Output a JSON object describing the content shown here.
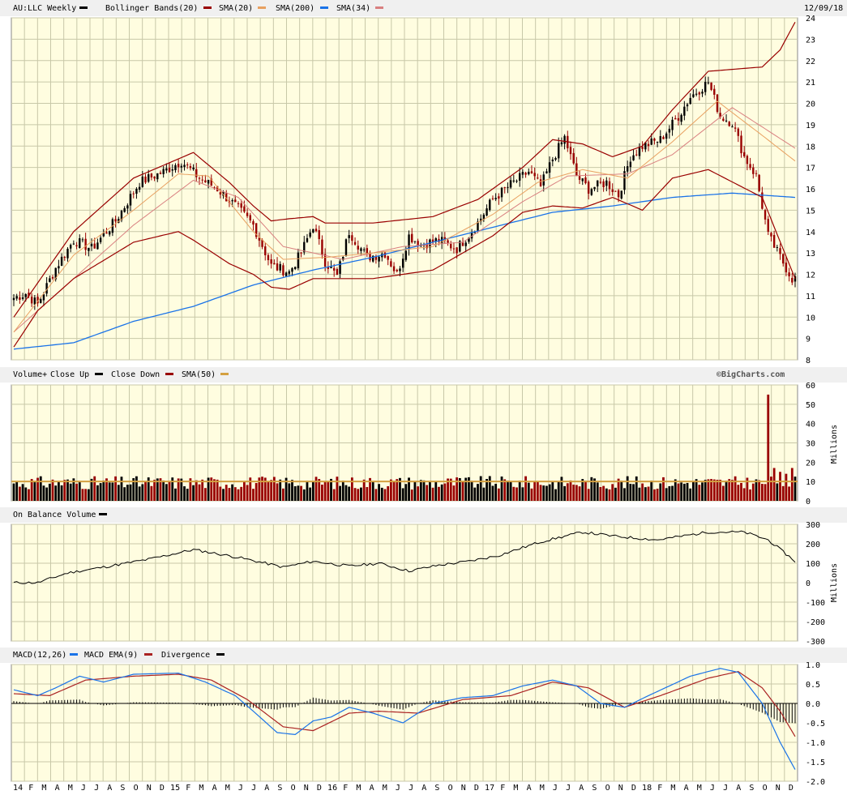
{
  "header": {
    "symbol_label": "AU:LLC Weekly",
    "bollinger_label": "Bollinger Bands(20)",
    "sma20_label": "SMA(20)",
    "sma200_label": "SMA(200)",
    "sma34_label": "SMA(34)",
    "date": "12/09/18"
  },
  "volume_header": {
    "title": "Volume+",
    "close_up": "Close Up",
    "close_down": "Close Down",
    "sma50": "SMA(50)",
    "credit": "©BigCharts.com"
  },
  "obv_header": {
    "title": "On Balance Volume"
  },
  "macd_header": {
    "title": "MACD(12,26)",
    "ema": "MACD EMA(9)",
    "divergence": "Divergence"
  },
  "colors": {
    "background": "#fffde0",
    "grid": "#c8c8a8",
    "up": "#000000",
    "down": "#990000",
    "bollinger": "#990000",
    "sma20": "#e8a060",
    "sma200": "#1a73e8",
    "sma34": "#d98080",
    "macd": "#1a73e8",
    "macd_ema": "#aa2222",
    "vol_sma": "#d4a040"
  },
  "chart_data": [
    {
      "type": "candlestick",
      "panel": "price",
      "ylim": [
        8,
        24
      ],
      "yticks": [
        8,
        9,
        10,
        11,
        12,
        13,
        14,
        15,
        16,
        17,
        18,
        19,
        20,
        21,
        22,
        23,
        24
      ],
      "x_labels": [
        "14",
        "F",
        "M",
        "A",
        "M",
        "J",
        "J",
        "A",
        "S",
        "O",
        "N",
        "D",
        "15",
        "F",
        "M",
        "A",
        "M",
        "J",
        "J",
        "A",
        "S",
        "O",
        "N",
        "D",
        "16",
        "F",
        "M",
        "A",
        "M",
        "J",
        "J",
        "A",
        "S",
        "O",
        "N",
        "D",
        "17",
        "F",
        "M",
        "A",
        "M",
        "J",
        "J",
        "A",
        "S",
        "O",
        "N",
        "D",
        "18",
        "F",
        "M",
        "A",
        "M",
        "J",
        "J",
        "A",
        "S",
        "O",
        "N",
        "D"
      ],
      "close_anchors": [
        [
          0,
          10.9
        ],
        [
          4,
          11.1
        ],
        [
          8,
          10.6
        ],
        [
          14,
          12.3
        ],
        [
          20,
          13.6
        ],
        [
          26,
          13.2
        ],
        [
          34,
          14.5
        ],
        [
          42,
          16.3
        ],
        [
          50,
          16.8
        ],
        [
          56,
          17.3
        ],
        [
          62,
          16.5
        ],
        [
          68,
          16.0
        ],
        [
          74,
          15.2
        ],
        [
          80,
          14.3
        ],
        [
          86,
          12.4
        ],
        [
          92,
          12.1
        ],
        [
          96,
          13.0
        ],
        [
          100,
          14.3
        ],
        [
          104,
          12.6
        ],
        [
          108,
          11.9
        ],
        [
          112,
          14.0
        ],
        [
          118,
          12.8
        ],
        [
          124,
          13.0
        ],
        [
          128,
          12.0
        ],
        [
          132,
          13.8
        ],
        [
          136,
          13.4
        ],
        [
          142,
          13.6
        ],
        [
          148,
          13.2
        ],
        [
          154,
          14.2
        ],
        [
          160,
          15.5
        ],
        [
          166,
          16.2
        ],
        [
          172,
          16.8
        ],
        [
          176,
          16.1
        ],
        [
          180,
          17.4
        ],
        [
          184,
          18.4
        ],
        [
          188,
          16.6
        ],
        [
          192,
          16.0
        ],
        [
          198,
          16.3
        ],
        [
          202,
          15.7
        ],
        [
          206,
          17.5
        ],
        [
          210,
          18.0
        ],
        [
          216,
          18.3
        ],
        [
          222,
          19.4
        ],
        [
          226,
          20.3
        ],
        [
          232,
          21.0
        ],
        [
          236,
          19.4
        ],
        [
          240,
          19.1
        ],
        [
          244,
          17.5
        ],
        [
          248,
          16.6
        ],
        [
          252,
          13.8
        ],
        [
          256,
          12.8
        ],
        [
          260,
          11.8
        ]
      ],
      "bb_upper_anchors": [
        [
          0,
          10.0
        ],
        [
          20,
          14.0
        ],
        [
          40,
          16.5
        ],
        [
          60,
          17.7
        ],
        [
          72,
          16.3
        ],
        [
          80,
          15.2
        ],
        [
          86,
          14.5
        ],
        [
          92,
          14.6
        ],
        [
          100,
          14.7
        ],
        [
          104,
          14.4
        ],
        [
          120,
          14.4
        ],
        [
          140,
          14.7
        ],
        [
          155,
          15.5
        ],
        [
          170,
          17.0
        ],
        [
          180,
          18.3
        ],
        [
          190,
          18.1
        ],
        [
          200,
          17.5
        ],
        [
          210,
          18.0
        ],
        [
          220,
          19.7
        ],
        [
          232,
          21.5
        ],
        [
          250,
          21.7
        ],
        [
          256,
          22.5
        ],
        [
          261,
          23.8
        ]
      ],
      "bb_lower_anchors": [
        [
          0,
          8.6
        ],
        [
          8,
          10.3
        ],
        [
          20,
          11.8
        ],
        [
          40,
          13.5
        ],
        [
          55,
          14.0
        ],
        [
          60,
          13.6
        ],
        [
          72,
          12.5
        ],
        [
          80,
          12.0
        ],
        [
          86,
          11.4
        ],
        [
          92,
          11.3
        ],
        [
          100,
          11.8
        ],
        [
          120,
          11.8
        ],
        [
          140,
          12.2
        ],
        [
          150,
          13.0
        ],
        [
          160,
          13.8
        ],
        [
          170,
          14.9
        ],
        [
          180,
          15.2
        ],
        [
          190,
          15.1
        ],
        [
          200,
          15.6
        ],
        [
          210,
          15.0
        ],
        [
          220,
          16.5
        ],
        [
          232,
          16.9
        ],
        [
          250,
          15.6
        ],
        [
          261,
          11.8
        ]
      ],
      "sma20_anchors": [
        [
          0,
          9.3
        ],
        [
          20,
          12.9
        ],
        [
          40,
          15.0
        ],
        [
          55,
          16.7
        ],
        [
          65,
          16.6
        ],
        [
          80,
          14.0
        ],
        [
          90,
          12.7
        ],
        [
          105,
          12.8
        ],
        [
          120,
          13.0
        ],
        [
          140,
          13.3
        ],
        [
          160,
          14.8
        ],
        [
          175,
          16.3
        ],
        [
          190,
          16.9
        ],
        [
          205,
          16.5
        ],
        [
          220,
          18.2
        ],
        [
          235,
          20.1
        ],
        [
          250,
          18.5
        ],
        [
          261,
          17.3
        ]
      ],
      "sma34_anchors": [
        [
          0,
          9.3
        ],
        [
          20,
          11.8
        ],
        [
          40,
          14.3
        ],
        [
          60,
          16.4
        ],
        [
          75,
          15.6
        ],
        [
          90,
          13.3
        ],
        [
          110,
          12.7
        ],
        [
          130,
          13.3
        ],
        [
          150,
          13.5
        ],
        [
          170,
          15.4
        ],
        [
          185,
          16.6
        ],
        [
          205,
          16.7
        ],
        [
          220,
          17.6
        ],
        [
          240,
          19.8
        ],
        [
          261,
          17.9
        ]
      ],
      "sma200_anchors": [
        [
          0,
          8.5
        ],
        [
          20,
          8.8
        ],
        [
          40,
          9.8
        ],
        [
          60,
          10.5
        ],
        [
          80,
          11.5
        ],
        [
          100,
          12.2
        ],
        [
          120,
          12.8
        ],
        [
          140,
          13.5
        ],
        [
          160,
          14.2
        ],
        [
          180,
          14.9
        ],
        [
          200,
          15.2
        ],
        [
          220,
          15.6
        ],
        [
          240,
          15.8
        ],
        [
          261,
          15.6
        ]
      ]
    },
    {
      "type": "bar",
      "panel": "volume",
      "ylabel": "Millions",
      "ylim": [
        0,
        60
      ],
      "yticks": [
        0,
        10,
        20,
        30,
        40,
        50,
        60
      ],
      "typical_volume": 9,
      "spikes": [
        [
          252,
          55
        ],
        [
          254,
          17
        ],
        [
          256,
          15
        ],
        [
          258,
          14
        ],
        [
          260,
          17
        ]
      ],
      "sma50_level": 10
    },
    {
      "type": "line",
      "panel": "obv",
      "ylabel": "Millions",
      "ylim": [
        -300,
        300
      ],
      "yticks": [
        -300,
        -200,
        -100,
        0,
        100,
        200,
        300
      ],
      "anchors": [
        [
          0,
          0
        ],
        [
          8,
          0
        ],
        [
          18,
          50
        ],
        [
          30,
          80
        ],
        [
          45,
          120
        ],
        [
          60,
          170
        ],
        [
          75,
          130
        ],
        [
          90,
          80
        ],
        [
          100,
          110
        ],
        [
          112,
          85
        ],
        [
          122,
          100
        ],
        [
          132,
          60
        ],
        [
          142,
          90
        ],
        [
          152,
          110
        ],
        [
          162,
          140
        ],
        [
          176,
          210
        ],
        [
          190,
          260
        ],
        [
          200,
          240
        ],
        [
          215,
          220
        ],
        [
          232,
          260
        ],
        [
          244,
          260
        ],
        [
          252,
          220
        ],
        [
          261,
          110
        ]
      ]
    },
    {
      "type": "line",
      "panel": "macd",
      "ylim": [
        -2.0,
        1.0
      ],
      "yticks": [
        1.0,
        0.5,
        0.0,
        -0.5,
        -1.0,
        -1.5,
        -2.0
      ],
      "macd_anchors": [
        [
          0,
          0.35
        ],
        [
          8,
          0.2
        ],
        [
          14,
          0.4
        ],
        [
          22,
          0.7
        ],
        [
          30,
          0.55
        ],
        [
          40,
          0.75
        ],
        [
          55,
          0.78
        ],
        [
          64,
          0.55
        ],
        [
          74,
          0.2
        ],
        [
          80,
          -0.2
        ],
        [
          88,
          -0.75
        ],
        [
          94,
          -0.8
        ],
        [
          100,
          -0.45
        ],
        [
          106,
          -0.35
        ],
        [
          112,
          -0.1
        ],
        [
          120,
          -0.25
        ],
        [
          130,
          -0.5
        ],
        [
          140,
          0.0
        ],
        [
          150,
          0.15
        ],
        [
          160,
          0.2
        ],
        [
          170,
          0.45
        ],
        [
          180,
          0.6
        ],
        [
          188,
          0.45
        ],
        [
          196,
          0.0
        ],
        [
          204,
          -0.1
        ],
        [
          212,
          0.2
        ],
        [
          226,
          0.7
        ],
        [
          236,
          0.9
        ],
        [
          242,
          0.8
        ],
        [
          250,
          0.0
        ],
        [
          256,
          -1.0
        ],
        [
          261,
          -1.7
        ]
      ],
      "ema_anchors": [
        [
          0,
          0.25
        ],
        [
          12,
          0.2
        ],
        [
          24,
          0.6
        ],
        [
          40,
          0.7
        ],
        [
          55,
          0.75
        ],
        [
          66,
          0.6
        ],
        [
          78,
          0.1
        ],
        [
          90,
          -0.6
        ],
        [
          100,
          -0.7
        ],
        [
          112,
          -0.25
        ],
        [
          122,
          -0.2
        ],
        [
          135,
          -0.25
        ],
        [
          150,
          0.1
        ],
        [
          166,
          0.2
        ],
        [
          180,
          0.55
        ],
        [
          192,
          0.4
        ],
        [
          204,
          -0.1
        ],
        [
          216,
          0.2
        ],
        [
          232,
          0.65
        ],
        [
          242,
          0.82
        ],
        [
          250,
          0.4
        ],
        [
          256,
          -0.2
        ],
        [
          261,
          -0.85
        ]
      ]
    }
  ]
}
